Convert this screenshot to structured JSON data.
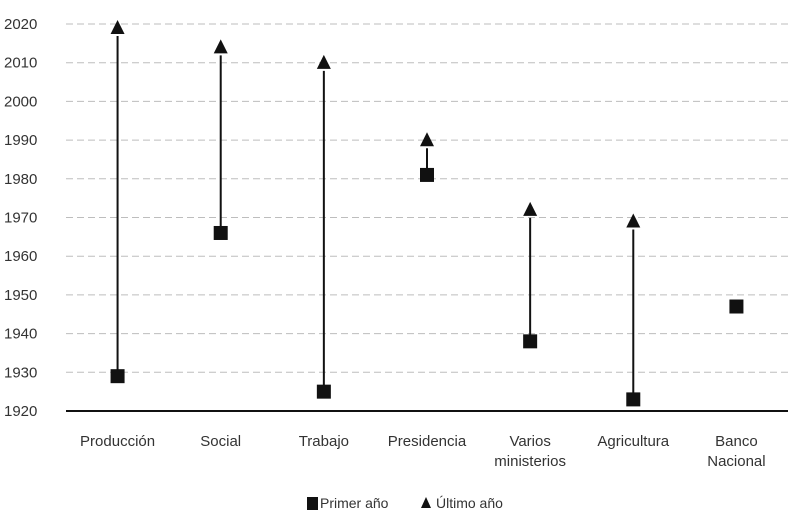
{
  "chart_data": {
    "type": "scatter",
    "categories": [
      [
        "Producción"
      ],
      [
        "Social"
      ],
      [
        "Trabajo"
      ],
      [
        "Presidencia"
      ],
      [
        "Varios",
        "ministerios"
      ],
      [
        "Agricultura"
      ],
      [
        "Banco",
        "Nacional"
      ]
    ],
    "series": [
      {
        "name": "Primer año",
        "marker": "square",
        "values": [
          1929,
          1966,
          1925,
          1981,
          1938,
          1923,
          1947
        ]
      },
      {
        "name": "Último año",
        "marker": "triangle",
        "values": [
          2020,
          2015,
          2011,
          1991,
          1973,
          1970,
          null
        ]
      }
    ],
    "ylim": [
      1920,
      2020
    ],
    "yticks": [
      "1920",
      "1930",
      "1940",
      "1950",
      "1960",
      "1970",
      "1980",
      "1990",
      "2000",
      "2010",
      "2020"
    ],
    "grid": true,
    "legend_position": "bottom",
    "colors": {
      "marker": "#111111",
      "grid": "#bdbdbd",
      "axis": "#111111"
    }
  }
}
